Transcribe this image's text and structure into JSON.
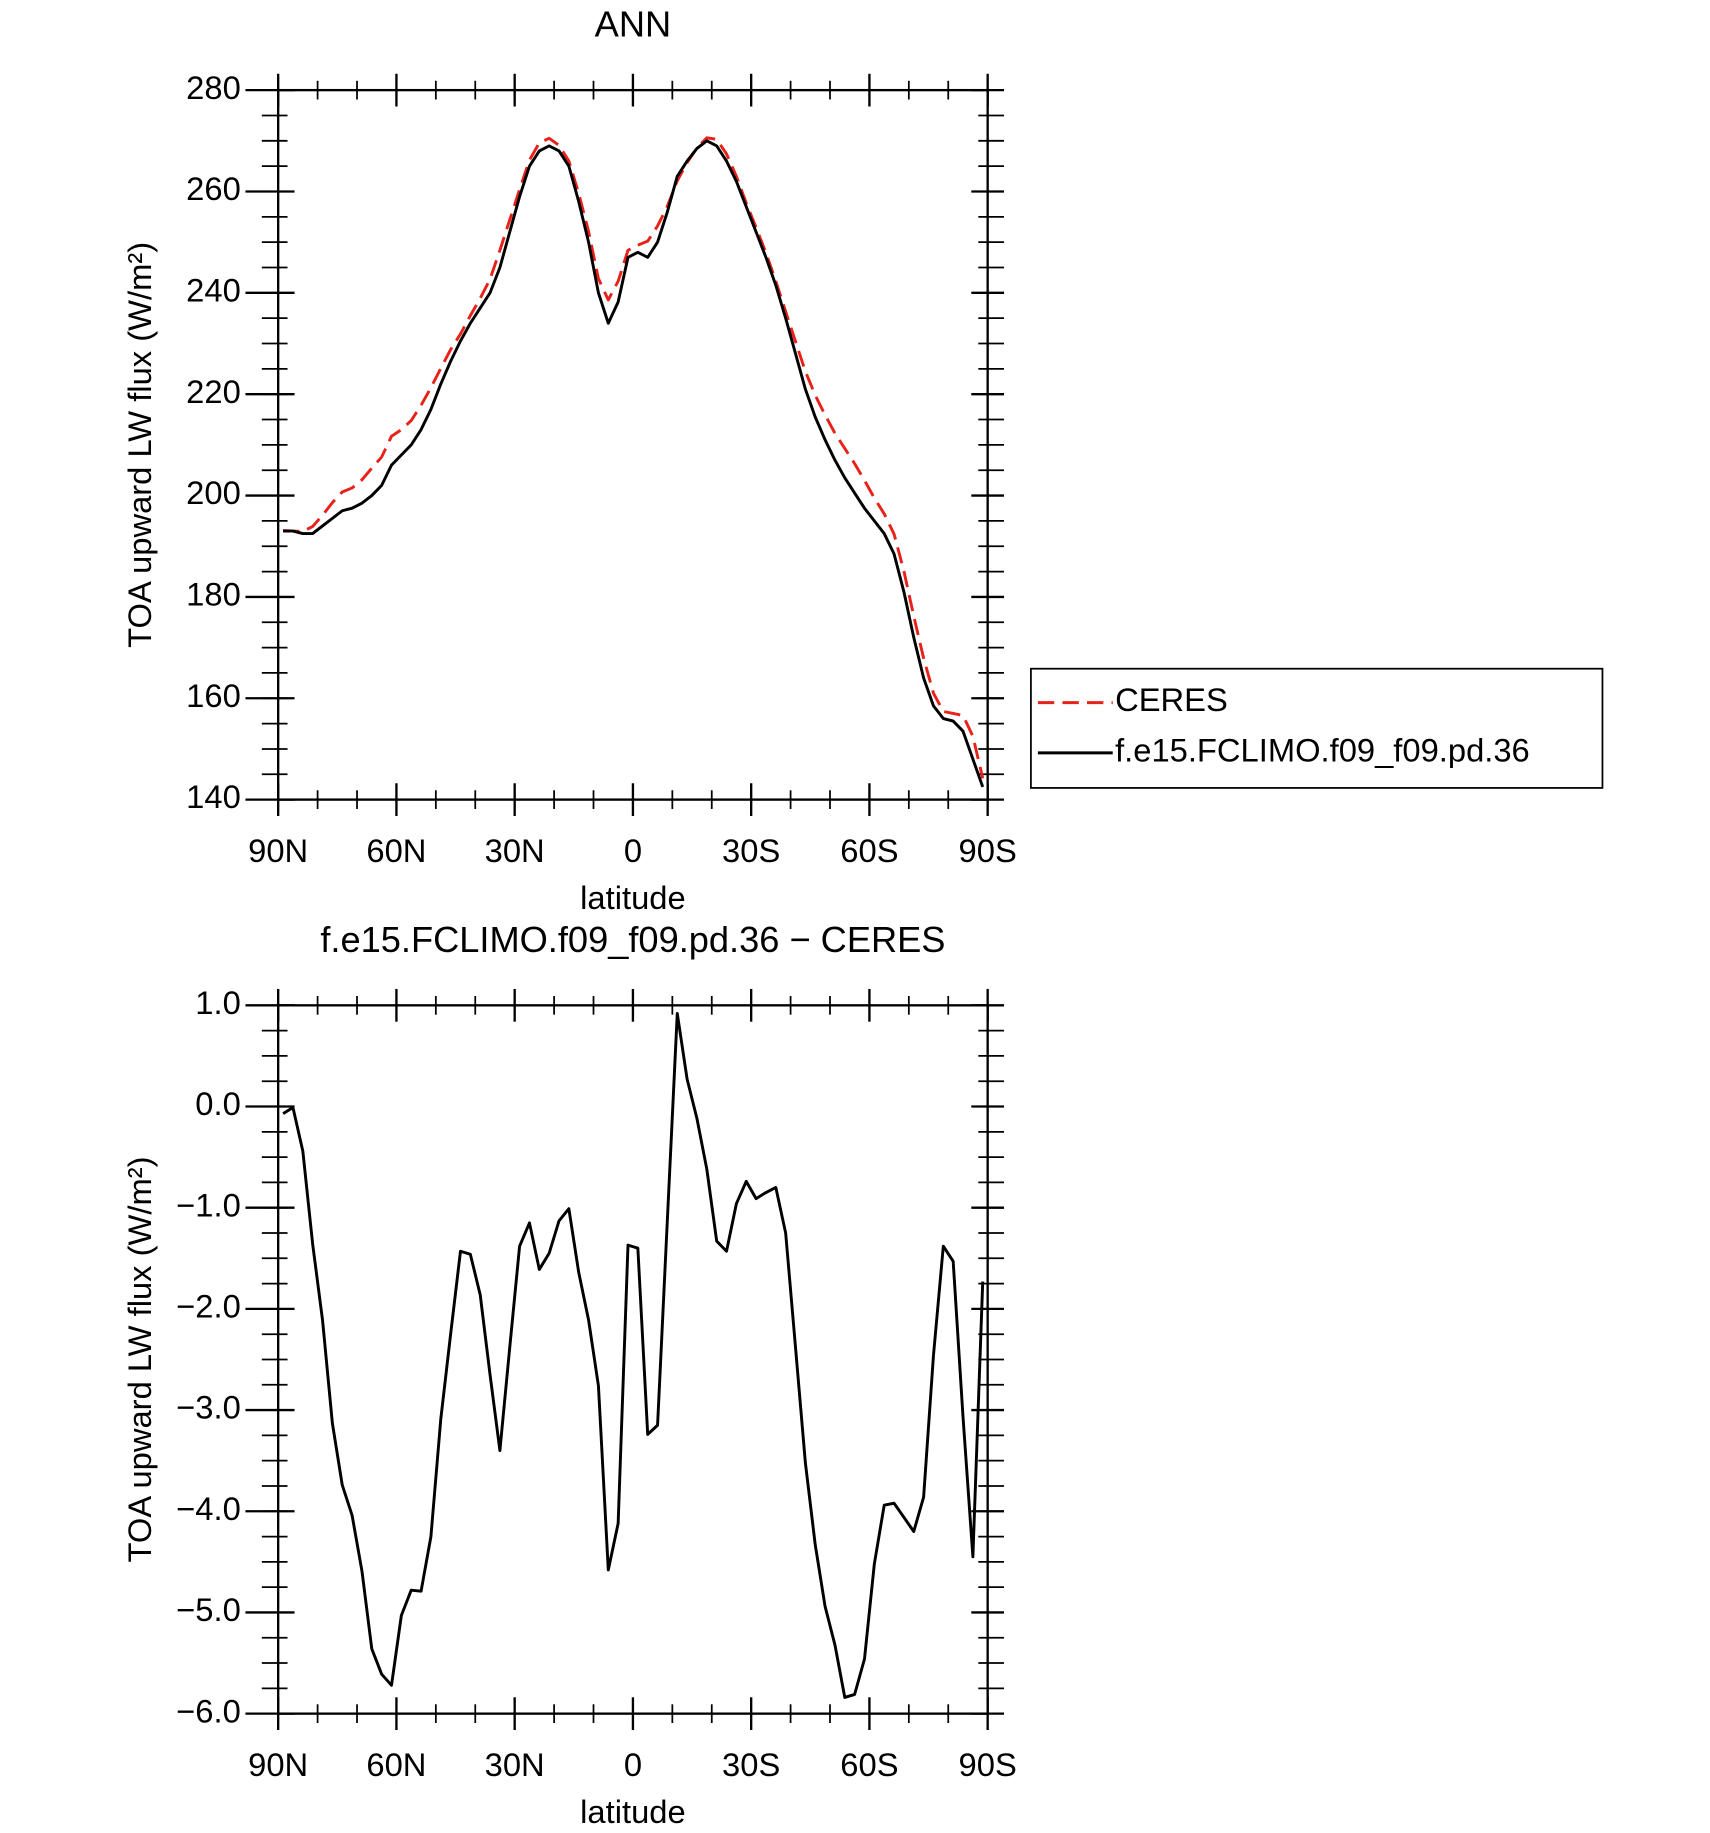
{
  "chart_data": [
    {
      "type": "line",
      "title": "ANN",
      "x_label": "latitude",
      "y_label": "TOA upward LW flux (W/m²)",
      "x": [
        88.75,
        86.25,
        83.75,
        81.25,
        78.75,
        76.25,
        73.75,
        71.25,
        68.75,
        66.25,
        63.75,
        61.25,
        58.75,
        56.25,
        53.75,
        51.25,
        48.75,
        46.25,
        43.75,
        41.25,
        38.75,
        36.25,
        33.75,
        31.25,
        28.75,
        26.25,
        23.75,
        21.25,
        18.75,
        16.25,
        13.75,
        11.25,
        8.75,
        6.25,
        3.75,
        1.25,
        -1.25,
        -3.75,
        -6.25,
        -8.75,
        -11.25,
        -13.75,
        -16.25,
        -18.75,
        -21.25,
        -23.75,
        -26.25,
        -28.75,
        -31.25,
        -33.75,
        -36.25,
        -38.75,
        -41.25,
        -43.75,
        -46.25,
        -48.75,
        -51.25,
        -53.75,
        -56.25,
        -58.75,
        -61.25,
        -63.75,
        -66.25,
        -68.75,
        -71.25,
        -73.75,
        -76.25,
        -78.75,
        -81.25,
        -83.75,
        -86.25,
        -88.75
      ],
      "series": [
        {
          "name": "CERES",
          "color": "#e8221a",
          "dash": true,
          "values": [
            193.1,
            193.0,
            192.9,
            193.9,
            196.1,
            198.6,
            200.7,
            201.5,
            203.1,
            205.4,
            207.6,
            211.7,
            213.0,
            214.8,
            217.8,
            221.3,
            225.1,
            228.8,
            231.9,
            235.5,
            238.9,
            242.7,
            248.4,
            254.4,
            260.4,
            266.2,
            269.6,
            270.5,
            269.1,
            266.0,
            259.6,
            252.1,
            242.8,
            238.6,
            242.3,
            248.4,
            249.4,
            250.2,
            253.2,
            257.1,
            262.1,
            265.7,
            268.6,
            270.6,
            270.3,
            267.4,
            263.0,
            257.7,
            252.9,
            247.9,
            242.3,
            236.3,
            230.4,
            224.5,
            219.8,
            215.9,
            212.3,
            209.3,
            206.3,
            203.0,
            199.5,
            196.4,
            192.4,
            185.1,
            176.2,
            167.9,
            161.0,
            157.4,
            157.0,
            156.6,
            152.5,
            144.2
          ]
        },
        {
          "name": "f.e15.FCLIMO.f09_f09.pd.36",
          "color": "#000000",
          "dash": false,
          "values": [
            193,
            193,
            192.5,
            192.5,
            194,
            195.5,
            197,
            197.5,
            198.5,
            200,
            202,
            206,
            208,
            210,
            213,
            217,
            222,
            226.5,
            230.5,
            234,
            237,
            240,
            245,
            252,
            259,
            265,
            268,
            269,
            268,
            265,
            258,
            250,
            240,
            234,
            238.2,
            247,
            248,
            247,
            250,
            256,
            263,
            266,
            268.5,
            270,
            269,
            266,
            262,
            257,
            252,
            247,
            241.5,
            235,
            228,
            221,
            215.5,
            211,
            207,
            203.5,
            200.5,
            197.5,
            195,
            192.5,
            188.5,
            181,
            172,
            164,
            158.5,
            156,
            155.5,
            153.5,
            148,
            142.5
          ]
        }
      ],
      "xlim": [
        90,
        -90
      ],
      "xticks": [
        {
          "value": 90,
          "label": "90N"
        },
        {
          "value": 60,
          "label": "60N"
        },
        {
          "value": 30,
          "label": "30N"
        },
        0,
        {
          "value": -30,
          "label": "30S"
        },
        {
          "value": -60,
          "label": "60S"
        },
        {
          "value": -90,
          "label": "90S"
        }
      ],
      "ylim": [
        140,
        280
      ],
      "yticks": [
        140,
        160,
        180,
        200,
        220,
        240,
        260,
        280
      ],
      "legend": "right"
    },
    {
      "type": "line",
      "title": "f.e15.FCLIMO.f09_f09.pd.36 − CERES",
      "x_label": "latitude",
      "y_label": "TOA upward LW flux (W/m²)",
      "x": [
        88.75,
        86.25,
        83.75,
        81.25,
        78.75,
        76.25,
        73.75,
        71.25,
        68.75,
        66.25,
        63.75,
        61.25,
        58.75,
        56.25,
        53.75,
        51.25,
        48.75,
        46.25,
        43.75,
        41.25,
        38.75,
        36.25,
        33.75,
        31.25,
        28.75,
        26.25,
        23.75,
        21.25,
        18.75,
        16.25,
        13.75,
        11.25,
        8.75,
        6.25,
        3.75,
        1.25,
        -1.25,
        -3.75,
        -6.25,
        -8.75,
        -11.25,
        -13.75,
        -16.25,
        -18.75,
        -21.25,
        -23.75,
        -26.25,
        -28.75,
        -31.25,
        -33.75,
        -36.25,
        -38.75,
        -41.25,
        -43.75,
        -46.25,
        -48.75,
        -51.25,
        -53.75,
        -56.25,
        -58.75,
        -61.25,
        -63.75,
        -66.25,
        -68.75,
        -71.25,
        -73.75,
        -76.25,
        -78.75,
        -81.25,
        -83.75,
        -86.25,
        -88.75
      ],
      "series": [
        {
          "color": "#000000",
          "dash": false,
          "values": [
            -0.07,
            -0.01,
            -0.44,
            -1.36,
            -2.11,
            -3.13,
            -3.74,
            -4.04,
            -4.59,
            -5.36,
            -5.61,
            -5.72,
            -5.03,
            -4.78,
            -4.79,
            -4.25,
            -3.09,
            -2.25,
            -1.43,
            -1.46,
            -1.86,
            -2.65,
            -3.4,
            -2.38,
            -1.38,
            -1.15,
            -1.61,
            -1.45,
            -1.13,
            -1.01,
            -1.64,
            -2.11,
            -2.76,
            -4.58,
            -4.12,
            -1.37,
            -1.4,
            -3.24,
            -3.15,
            -1.11,
            0.92,
            0.27,
            -0.12,
            -0.62,
            -1.33,
            -1.43,
            -0.96,
            -0.74,
            -0.91,
            -0.85,
            -0.8,
            -1.25,
            -2.38,
            -3.52,
            -4.33,
            -4.94,
            -5.32,
            -5.84,
            -5.81,
            -5.46,
            -4.52,
            -3.94,
            -3.92,
            -4.06,
            -4.2,
            -3.86,
            -2.46,
            -1.38,
            -1.53,
            -3.07,
            -4.45,
            -1.73
          ]
        }
      ],
      "xlim": [
        90,
        -90
      ],
      "xticks": [
        {
          "value": 90,
          "label": "90N"
        },
        {
          "value": 60,
          "label": "60N"
        },
        {
          "value": 30,
          "label": "30N"
        },
        0,
        {
          "value": -30,
          "label": "30S"
        },
        {
          "value": -60,
          "label": "60S"
        },
        {
          "value": -90,
          "label": "90S"
        }
      ],
      "ylim": [
        -6,
        1
      ],
      "yticks": [
        {
          "value": -6,
          "label": "−6.0"
        },
        {
          "value": -5,
          "label": "−5.0"
        },
        {
          "value": -4,
          "label": "−4.0"
        },
        {
          "value": -3,
          "label": "−3.0"
        },
        {
          "value": -2,
          "label": "−2.0"
        },
        {
          "value": -1,
          "label": "−1.0"
        },
        {
          "value": 0,
          "label": "0.0"
        },
        {
          "value": 1,
          "label": "1.0"
        }
      ]
    }
  ]
}
